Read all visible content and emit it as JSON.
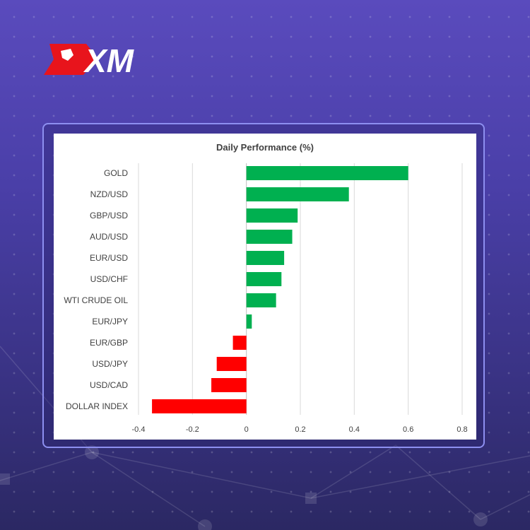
{
  "brand": {
    "name": "XM",
    "logo_color": "#e8141c"
  },
  "chart_data": {
    "type": "bar",
    "orientation": "horizontal",
    "title": "Daily Performance  (%)",
    "categories": [
      "GOLD",
      "NZD/USD",
      "GBP/USD",
      "AUD/USD",
      "EUR/USD",
      "USD/CHF",
      "WTI CRUDE OIL",
      "EUR/JPY",
      "EUR/GBP",
      "USD/JPY",
      "USD/CAD",
      "DOLLAR INDEX"
    ],
    "values": [
      0.6,
      0.38,
      0.19,
      0.17,
      0.14,
      0.13,
      0.11,
      0.02,
      -0.05,
      -0.11,
      -0.13,
      -0.35
    ],
    "xlim": [
      -0.4,
      0.8
    ],
    "xticks": [
      "-0.4",
      "-0.2",
      "0",
      "0.2",
      "0.4",
      "0.6",
      "0.8"
    ],
    "xtick_values": [
      -0.4,
      -0.2,
      0,
      0.2,
      0.4,
      0.6,
      0.8
    ],
    "grid": true,
    "positive_color": "#00b050",
    "negative_color": "#ff0000"
  }
}
